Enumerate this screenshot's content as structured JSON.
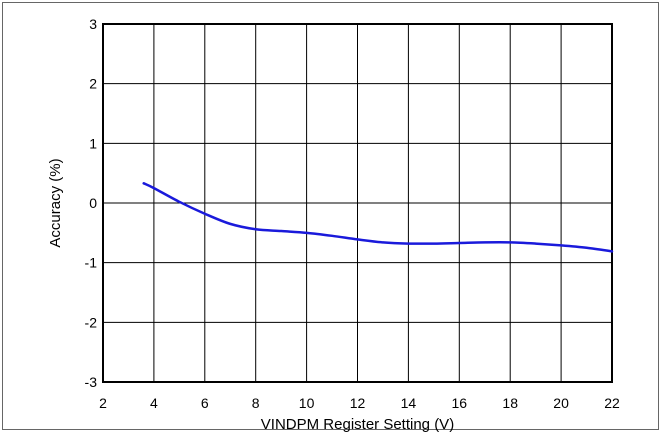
{
  "chart_data": {
    "type": "line",
    "title": "",
    "xlabel": "VINDPM Register Setting (V)",
    "ylabel": "Accuracy (%)",
    "xlim": [
      2,
      22
    ],
    "ylim": [
      -3,
      3
    ],
    "xticks": [
      2,
      4,
      6,
      8,
      10,
      12,
      14,
      16,
      18,
      20,
      22
    ],
    "yticks": [
      3,
      2,
      1,
      0,
      -1,
      -2,
      -3
    ],
    "xtick_labels": [
      "2",
      "4",
      "6",
      "8",
      "10",
      "12",
      "14",
      "16",
      "18",
      "20",
      "22"
    ],
    "ytick_labels": [
      "3",
      "2",
      "1",
      "0",
      "-1",
      "-2",
      "-3"
    ],
    "grid": true,
    "series": [
      {
        "color": "#1a1adb",
        "x": [
          3.6,
          4.0,
          5.0,
          6.0,
          7.0,
          8.0,
          9.0,
          10.0,
          11.0,
          12.0,
          13.0,
          14.0,
          15.0,
          16.0,
          17.0,
          18.0,
          19.0,
          20.0,
          21.0,
          22.0
        ],
        "y": [
          0.33,
          0.25,
          0.02,
          -0.18,
          -0.35,
          -0.44,
          -0.47,
          -0.5,
          -0.55,
          -0.61,
          -0.66,
          -0.68,
          -0.68,
          -0.67,
          -0.66,
          -0.66,
          -0.68,
          -0.71,
          -0.75,
          -0.81
        ]
      }
    ]
  }
}
